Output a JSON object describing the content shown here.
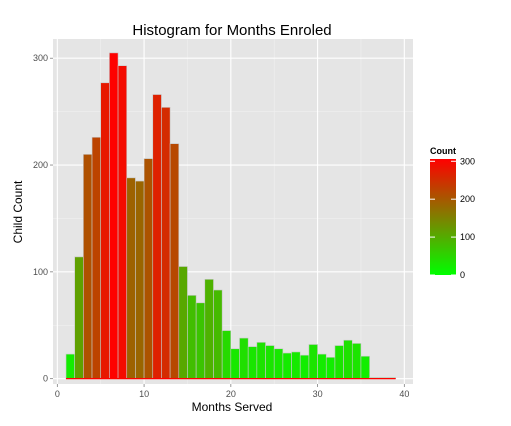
{
  "chart_data": {
    "type": "bar",
    "title": "Histogram for Months Enroled",
    "xlabel": "Months Served",
    "ylabel": "Child Count",
    "xlim": [
      -0.5,
      41
    ],
    "ylim": [
      -5,
      318
    ],
    "x_ticks": [
      0,
      10,
      20,
      30,
      40
    ],
    "y_ticks": [
      0,
      100,
      200,
      300
    ],
    "grid": true,
    "bin_width": 1,
    "bins": [
      {
        "x": 1.5,
        "count": 23
      },
      {
        "x": 2.5,
        "count": 114
      },
      {
        "x": 3.5,
        "count": 210
      },
      {
        "x": 4.5,
        "count": 226
      },
      {
        "x": 5.5,
        "count": 277
      },
      {
        "x": 6.5,
        "count": 305
      },
      {
        "x": 7.5,
        "count": 293
      },
      {
        "x": 8.5,
        "count": 188
      },
      {
        "x": 9.5,
        "count": 185
      },
      {
        "x": 10.5,
        "count": 206
      },
      {
        "x": 11.5,
        "count": 266
      },
      {
        "x": 12.5,
        "count": 254
      },
      {
        "x": 13.5,
        "count": 220
      },
      {
        "x": 14.5,
        "count": 105
      },
      {
        "x": 15.5,
        "count": 78
      },
      {
        "x": 16.5,
        "count": 71
      },
      {
        "x": 17.5,
        "count": 93
      },
      {
        "x": 18.5,
        "count": 83
      },
      {
        "x": 19.5,
        "count": 45
      },
      {
        "x": 20.5,
        "count": 28
      },
      {
        "x": 21.5,
        "count": 38
      },
      {
        "x": 22.5,
        "count": 30
      },
      {
        "x": 23.5,
        "count": 34
      },
      {
        "x": 24.5,
        "count": 31
      },
      {
        "x": 25.5,
        "count": 28
      },
      {
        "x": 26.5,
        "count": 24
      },
      {
        "x": 27.5,
        "count": 25
      },
      {
        "x": 28.5,
        "count": 22
      },
      {
        "x": 29.5,
        "count": 32
      },
      {
        "x": 30.5,
        "count": 23
      },
      {
        "x": 31.5,
        "count": 20
      },
      {
        "x": 32.5,
        "count": 31
      },
      {
        "x": 33.5,
        "count": 36
      },
      {
        "x": 34.5,
        "count": 33
      },
      {
        "x": 35.5,
        "count": 21
      },
      {
        "x": 36.5,
        "count": 1
      },
      {
        "x": 37.5,
        "count": 1
      },
      {
        "x": 38.5,
        "count": 1
      }
    ],
    "legend": {
      "title": "Count",
      "position": "right",
      "breaks": [
        0,
        100,
        200,
        300
      ],
      "range": [
        0,
        306
      ],
      "low_color": "#00ff00",
      "high_color": "#ff0000"
    },
    "colors": {
      "panel_background": "#e5e5e5",
      "grid_major": "#ffffff",
      "grid_minor": "#f2f2f2",
      "bar_outline": "#c8c8c8",
      "baseline_color": "#ff0000"
    }
  }
}
